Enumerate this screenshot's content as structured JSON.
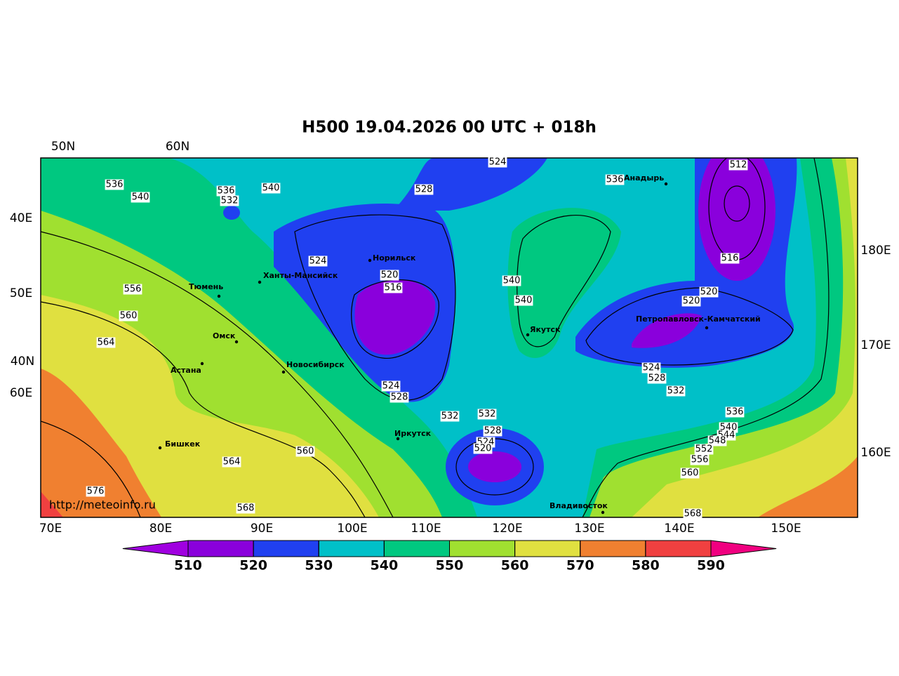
{
  "title": "H500  19.04.2026 00 UTC + 018h",
  "credit": "http://meteoinfo.ru",
  "grid_labels": [
    "50N",
    "60N",
    "40E",
    "50E",
    "40N",
    "60E",
    "180E",
    "170E",
    "160E"
  ],
  "bottom_labels": [
    "70E",
    "80E",
    "90E",
    "100E",
    "110E",
    "120E",
    "130E",
    "140E",
    "150E"
  ],
  "cities": [
    "Норильск",
    "Ханты-Мансийск",
    "Тюмень",
    "Омск",
    "Астана",
    "Новосибирск",
    "Иркутск",
    "Бишкек",
    "Якутск",
    "Анадырь",
    "Петропавловск-Камчатский",
    "Владивосток"
  ],
  "contour_labels": [
    536,
    540,
    536,
    532,
    540,
    528,
    524,
    536,
    512,
    524,
    520,
    516,
    540,
    540,
    516,
    520,
    520,
    556,
    560,
    564,
    524,
    528,
    532,
    532,
    528,
    524,
    520,
    524,
    528,
    532,
    536,
    540,
    544,
    548,
    552,
    556,
    560,
    560,
    564,
    576,
    568,
    568
  ],
  "colorbar": {
    "ticks": [
      510,
      520,
      530,
      540,
      550,
      560,
      570,
      580,
      590
    ],
    "colors": [
      "#a000e0",
      "#8a00dc",
      "#2040f0",
      "#00c0c8",
      "#00c880",
      "#a0e030",
      "#e0e040",
      "#f08030",
      "#f04040",
      "#f00080"
    ]
  }
}
